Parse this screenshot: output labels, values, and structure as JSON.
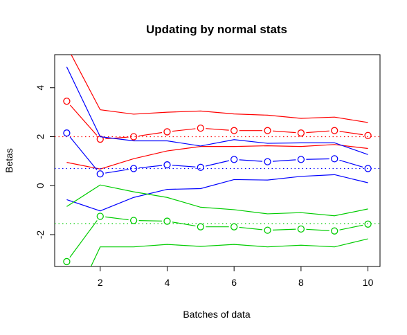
{
  "chart_data": {
    "type": "line",
    "title": "Updating by normal stats",
    "xlabel": "Batches of data",
    "ylabel": "Betas",
    "xlim": [
      0.64,
      10.36
    ],
    "ylim": [
      -3.3,
      5.35
    ],
    "x_ticks": [
      2,
      4,
      6,
      8,
      10
    ],
    "y_ticks": [
      -2,
      0,
      2,
      4
    ],
    "x": [
      1,
      2,
      3,
      4,
      5,
      6,
      7,
      8,
      9,
      10
    ],
    "grid": false,
    "legend": "none",
    "series": [
      {
        "color": "#ff0000",
        "estimate": [
          3.45,
          1.9,
          2.0,
          2.2,
          2.35,
          2.25,
          2.25,
          2.15,
          2.25,
          2.05
        ],
        "upper": [
          5.7,
          3.1,
          2.92,
          3.0,
          3.05,
          2.93,
          2.88,
          2.75,
          2.8,
          2.58
        ],
        "lower": [
          0.95,
          0.68,
          1.1,
          1.42,
          1.6,
          1.6,
          1.63,
          1.6,
          1.68,
          1.52
        ],
        "true_value": 2.0
      },
      {
        "color": "#0000ff",
        "estimate": [
          2.15,
          0.48,
          0.7,
          0.85,
          0.75,
          1.07,
          0.98,
          1.07,
          1.1,
          0.7
        ],
        "upper": [
          4.85,
          2.0,
          1.83,
          1.83,
          1.62,
          1.88,
          1.73,
          1.75,
          1.75,
          1.27
        ],
        "lower": [
          -0.57,
          -1.03,
          -0.48,
          -0.15,
          -0.12,
          0.25,
          0.23,
          0.38,
          0.45,
          0.12
        ],
        "true_value": 0.7
      },
      {
        "color": "#00cc00",
        "estimate": [
          -3.1,
          -1.25,
          -1.42,
          -1.45,
          -1.68,
          -1.68,
          -1.82,
          -1.77,
          -1.85,
          -1.57
        ],
        "upper": [
          -0.85,
          0.03,
          -0.25,
          -0.48,
          -0.88,
          -0.98,
          -1.15,
          -1.1,
          -1.23,
          -0.95
        ],
        "lower": [
          -5.4,
          -2.5,
          -2.5,
          -2.4,
          -2.48,
          -2.4,
          -2.5,
          -2.43,
          -2.5,
          -2.17
        ],
        "true_value": -1.55
      }
    ]
  }
}
